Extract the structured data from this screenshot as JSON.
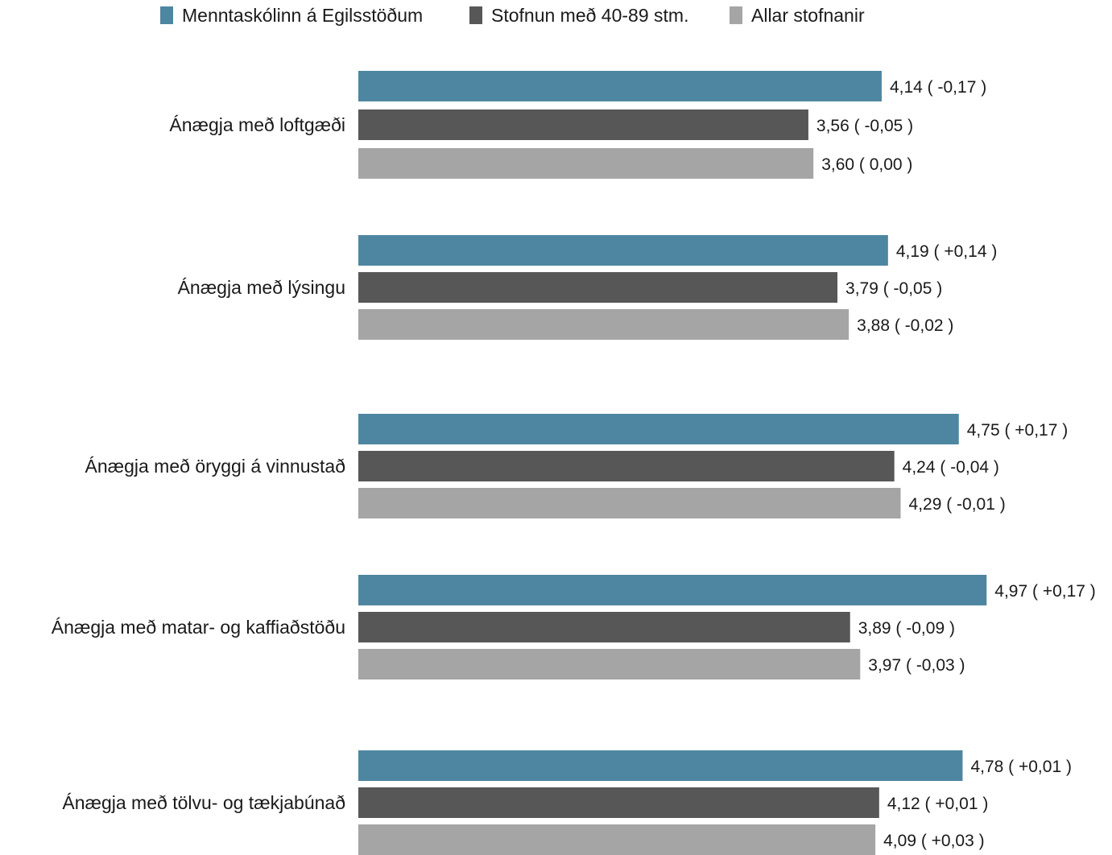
{
  "chart_data": {
    "type": "bar",
    "orientation": "horizontal",
    "legend": [
      "Menntaskólinn á Egilsstöðum",
      "Stofnun með 40-89 stm.",
      "Allar stofnanir"
    ],
    "legend_position": "top",
    "categories": [
      "Ánægja með loftgæði",
      "Ánægja með lýsingu",
      "Ánægja með öryggi á vinnustað",
      "Ánægja með matar- og kaffiaðstöðu",
      "Ánægja með tölvu- og tækjabúnað"
    ],
    "series": [
      {
        "name": "Menntaskólinn á Egilsstöðum",
        "color": "#4e86a1",
        "values": [
          4.14,
          4.19,
          4.75,
          4.97,
          4.78
        ],
        "labels": [
          "4,14 ( -0,17 )",
          "4,19 ( +0,14 )",
          "4,75 ( +0,17 )",
          "4,97 ( +0,17 )",
          "4,78 ( +0,01 )"
        ]
      },
      {
        "name": "Stofnun með 40-89 stm.",
        "color": "#575757",
        "values": [
          3.56,
          3.79,
          4.24,
          3.89,
          4.12
        ],
        "labels": [
          "3,56 ( -0,05 )",
          "3,79 ( -0,05 )",
          "4,24 ( -0,04 )",
          "3,89 ( -0,09 )",
          "4,12 ( +0,01 )"
        ]
      },
      {
        "name": "Allar stofnanir",
        "color": "#a5a5a5",
        "values": [
          3.6,
          3.88,
          4.29,
          3.97,
          4.09
        ],
        "labels": [
          "3,60 ( 0,00 )",
          "3,88 ( -0,02 )",
          "4,29 ( -0,01 )",
          "3,97 ( -0,03 )",
          "4,09 ( +0,03 )"
        ]
      }
    ],
    "xlim": [
      0,
      5
    ],
    "grid": false,
    "axes_visible": false
  }
}
